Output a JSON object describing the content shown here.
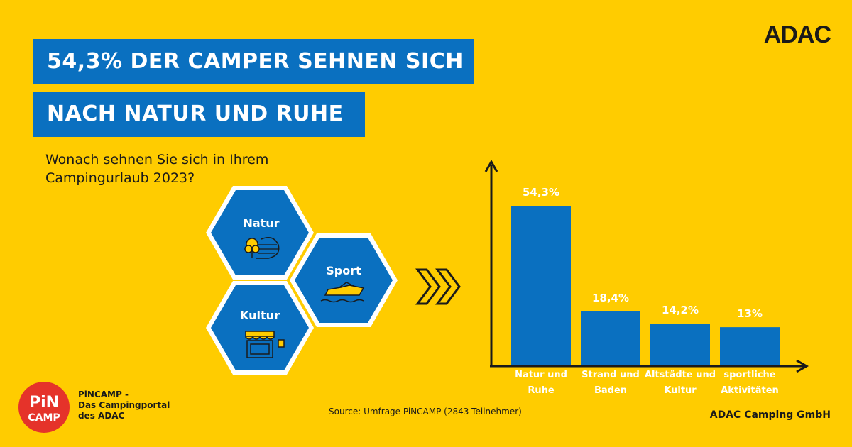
{
  "header": {
    "title_line1": "54,3% DER CAMPER SEHNEN SICH",
    "title_line2": "NACH NATUR UND RUHE",
    "brand_logo": "ADAC"
  },
  "question": "Wonach sehnen Sie sich in Ihrem Campingurlaub 2023?",
  "hexagons": [
    {
      "label": "Natur",
      "icon": "tree-lake-icon"
    },
    {
      "label": "Sport",
      "icon": "boat-icon"
    },
    {
      "label": "Kultur",
      "icon": "storefront-icon"
    }
  ],
  "arrow_icon": "double-chevron-right-icon",
  "colors": {
    "background": "#FFCC00",
    "accent": "#0A70C0",
    "pincamp_red": "#E5332A"
  },
  "chart_data": {
    "type": "bar",
    "categories": [
      [
        "Natur und",
        "Ruhe"
      ],
      [
        "Strand und",
        "Baden"
      ],
      [
        "Altstädte und",
        "Kultur"
      ],
      [
        "sportliche",
        "Aktivitäten"
      ]
    ],
    "values": [
      54.3,
      18.4,
      14.2,
      13
    ],
    "value_labels": [
      "54,3%",
      "18,4%",
      "14,2%",
      "13%"
    ],
    "ylim": [
      0,
      54.3
    ],
    "grid": false,
    "bar_color": "#0A70C0"
  },
  "footer": {
    "pincamp_logo_line1": "PiN",
    "pincamp_logo_line2": "CAMP",
    "pincamp_text_line1": "PiNCAMP -",
    "pincamp_text_line2": "Das Campingportal",
    "pincamp_text_line3": "des ADAC",
    "source": "Source: Umfrage PiNCAMP (2843 Teilnehmer)",
    "company": "ADAC Camping GmbH"
  }
}
